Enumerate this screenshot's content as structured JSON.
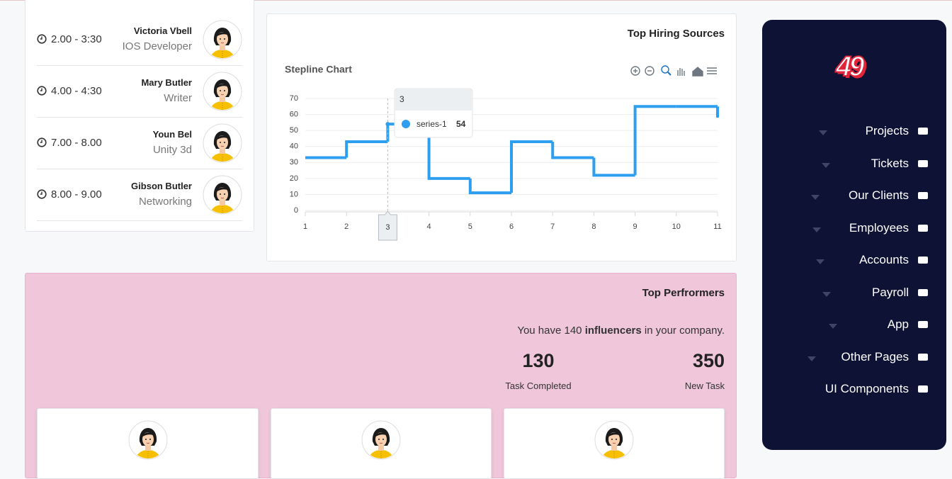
{
  "schedule": {
    "items": [
      {
        "time": "2.00 - 3:30",
        "name": "Victoria Vbell",
        "role": "IOS Developer"
      },
      {
        "time": "4.00 - 4:30",
        "name": "Mary Butler",
        "role": "Writer"
      },
      {
        "time": "7.00 - 8.00",
        "name": "Youn Bel",
        "role": "Unity 3d"
      },
      {
        "time": "8.00 - 9.00",
        "name": "Gibson Butler",
        "role": "Networking"
      }
    ]
  },
  "hiring": {
    "title": "Top Hiring Sources",
    "chart_data": {
      "type": "line",
      "step": true,
      "title": "Stepline Chart",
      "x": [
        1,
        2,
        3,
        4,
        5,
        6,
        7,
        8,
        9,
        10,
        11
      ],
      "xlim": [
        1,
        11
      ],
      "xticks": [
        1,
        2,
        3,
        4,
        5,
        6,
        7,
        8,
        9,
        10,
        11
      ],
      "ylim": [
        0,
        70
      ],
      "yticks": [
        0,
        10,
        20,
        30,
        40,
        50,
        60,
        70
      ],
      "grid": true,
      "series": [
        {
          "name": "series-1",
          "color": "#2e9ef0",
          "values": [
            33,
            43,
            54,
            20,
            11,
            43,
            33,
            22,
            65,
            65,
            58
          ]
        }
      ],
      "tooltip_index": 2
    }
  },
  "performers": {
    "title": "Top Perfrormers",
    "sentence": {
      "before": "You have 140",
      "bold": "influencers",
      "after": "in your company."
    },
    "stats": [
      {
        "value": "130",
        "label": "Task Completed"
      },
      {
        "value": "350",
        "label": "New Task"
      }
    ]
  },
  "sidebar": {
    "logo": "49",
    "menu": [
      "Projects",
      "Tickets",
      "Our Clients",
      "Employees",
      "Accounts",
      "Payroll",
      "App",
      "Other Pages",
      "UI Components"
    ]
  }
}
